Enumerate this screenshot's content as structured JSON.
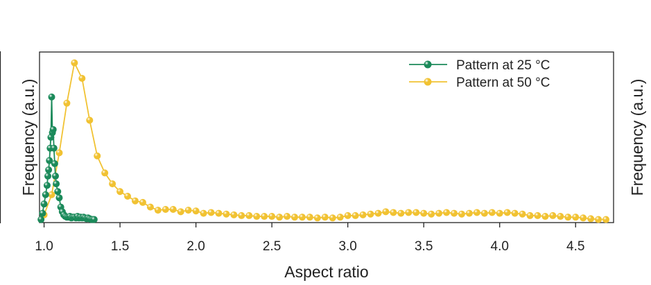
{
  "chart_data": {
    "type": "line",
    "xlabel": "Aspect ratio",
    "ylabel": "Frequency (a.u.)",
    "xlim": [
      0.97,
      4.75
    ],
    "ylim": [
      0,
      1.1
    ],
    "xticks": [
      "1.0",
      "1.5",
      "2.0",
      "2.5",
      "3.0",
      "3.5",
      "4.0",
      "4.5"
    ],
    "yticks": [],
    "grid": false,
    "legend_position": "top-right",
    "series": [
      {
        "name": "Pattern at 25 °C",
        "color": "#1b8a5a",
        "x": [
          0.98,
          0.99,
          1.0,
          1.01,
          1.02,
          1.025,
          1.03,
          1.035,
          1.04,
          1.045,
          1.05,
          1.055,
          1.06,
          1.065,
          1.07,
          1.075,
          1.08,
          1.09,
          1.1,
          1.11,
          1.12,
          1.13,
          1.14,
          1.15,
          1.16,
          1.17,
          1.18,
          1.19,
          1.2,
          1.21,
          1.22,
          1.23,
          1.24,
          1.25,
          1.26,
          1.27,
          1.28,
          1.29,
          1.3,
          1.31,
          1.32,
          1.33
        ],
        "values": [
          0.02,
          0.06,
          0.12,
          0.18,
          0.24,
          0.3,
          0.34,
          0.4,
          0.48,
          0.55,
          0.81,
          0.58,
          0.6,
          0.48,
          0.38,
          0.3,
          0.25,
          0.2,
          0.16,
          0.1,
          0.07,
          0.05,
          0.04,
          0.035,
          0.035,
          0.04,
          0.03,
          0.035,
          0.035,
          0.03,
          0.04,
          0.03,
          0.035,
          0.03,
          0.035,
          0.03,
          0.025,
          0.03,
          0.025,
          0.02,
          0.02,
          0.02
        ]
      },
      {
        "name": "Pattern at 50 °C",
        "color": "#f1c232",
        "x": [
          1.0,
          1.05,
          1.1,
          1.15,
          1.2,
          1.25,
          1.3,
          1.35,
          1.4,
          1.45,
          1.5,
          1.55,
          1.6,
          1.65,
          1.7,
          1.75,
          1.8,
          1.85,
          1.9,
          1.95,
          2.0,
          2.05,
          2.1,
          2.15,
          2.2,
          2.25,
          2.3,
          2.35,
          2.4,
          2.45,
          2.5,
          2.55,
          2.6,
          2.65,
          2.7,
          2.75,
          2.8,
          2.85,
          2.9,
          2.95,
          3.0,
          3.05,
          3.1,
          3.15,
          3.2,
          3.25,
          3.3,
          3.35,
          3.4,
          3.45,
          3.5,
          3.55,
          3.6,
          3.65,
          3.7,
          3.75,
          3.8,
          3.85,
          3.9,
          3.95,
          4.0,
          4.05,
          4.1,
          4.15,
          4.2,
          4.25,
          4.3,
          4.35,
          4.4,
          4.45,
          4.5,
          4.55,
          4.6,
          4.65,
          4.7
        ],
        "values": [
          0.05,
          0.18,
          0.45,
          0.77,
          1.03,
          0.93,
          0.66,
          0.43,
          0.32,
          0.25,
          0.2,
          0.17,
          0.14,
          0.13,
          0.1,
          0.08,
          0.085,
          0.085,
          0.07,
          0.08,
          0.075,
          0.06,
          0.065,
          0.06,
          0.055,
          0.05,
          0.045,
          0.045,
          0.04,
          0.04,
          0.04,
          0.035,
          0.04,
          0.035,
          0.035,
          0.035,
          0.03,
          0.035,
          0.03,
          0.035,
          0.045,
          0.045,
          0.05,
          0.055,
          0.06,
          0.07,
          0.065,
          0.06,
          0.065,
          0.065,
          0.06,
          0.055,
          0.06,
          0.065,
          0.06,
          0.055,
          0.06,
          0.065,
          0.06,
          0.065,
          0.06,
          0.065,
          0.06,
          0.055,
          0.045,
          0.045,
          0.04,
          0.045,
          0.04,
          0.035,
          0.035,
          0.03,
          0.025,
          0.02,
          0.02
        ]
      }
    ]
  }
}
